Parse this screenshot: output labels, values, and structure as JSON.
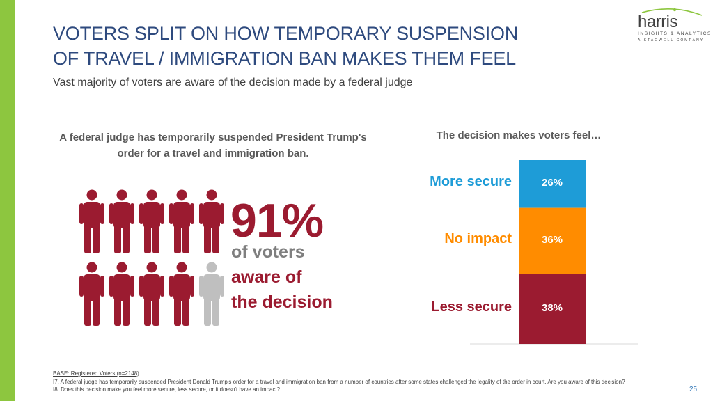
{
  "header": {
    "title_line1": "VOTERS SPLIT ON HOW TEMPORARY SUSPENSION",
    "title_line2": "OF TRAVEL / IMMIGRATION BAN MAKES THEM FEEL",
    "subtitle": "Vast majority of voters are aware of the decision made by a federal judge"
  },
  "logo": {
    "word": "harris",
    "tagline": "INSIGHTS & ANALYTICS",
    "company": "A STAGWELL COMPANY"
  },
  "left_panel": {
    "heading": "A federal judge has temporarily suspended President Trump's order for a travel and immigration ban.",
    "percent": "91%",
    "line1": "of voters",
    "line2": "aware of",
    "line3": "the decision",
    "people_total": 10,
    "people_aware": 9,
    "aware_color": "#9b1b30",
    "unaware_color": "#bfbfbf"
  },
  "chart_data": {
    "type": "bar",
    "stacked": true,
    "title": "The decision makes voters feel…",
    "categories": [
      "More secure",
      "No impact",
      "Less secure"
    ],
    "values": [
      26,
      36,
      38
    ],
    "value_labels": [
      "26%",
      "36%",
      "38%"
    ],
    "colors": [
      "#1e9cd7",
      "#ff8c00",
      "#9b1b30"
    ],
    "label_colors": [
      "#1e9cd7",
      "#ff8c00",
      "#9b1b30"
    ],
    "ylim": [
      0,
      100
    ]
  },
  "footer": {
    "base": "BASE: Registered Voters (n=2148)",
    "q1": "I7. A federal judge has temporarily suspended President Donald Trump's order for a travel and immigration ban from a number of countries after some states challenged the legality of the order in court.  Are you aware of this decision?",
    "q2": "I8. Does this decision make you feel more secure, less secure, or it doesn't have an impact?",
    "page": "25"
  }
}
